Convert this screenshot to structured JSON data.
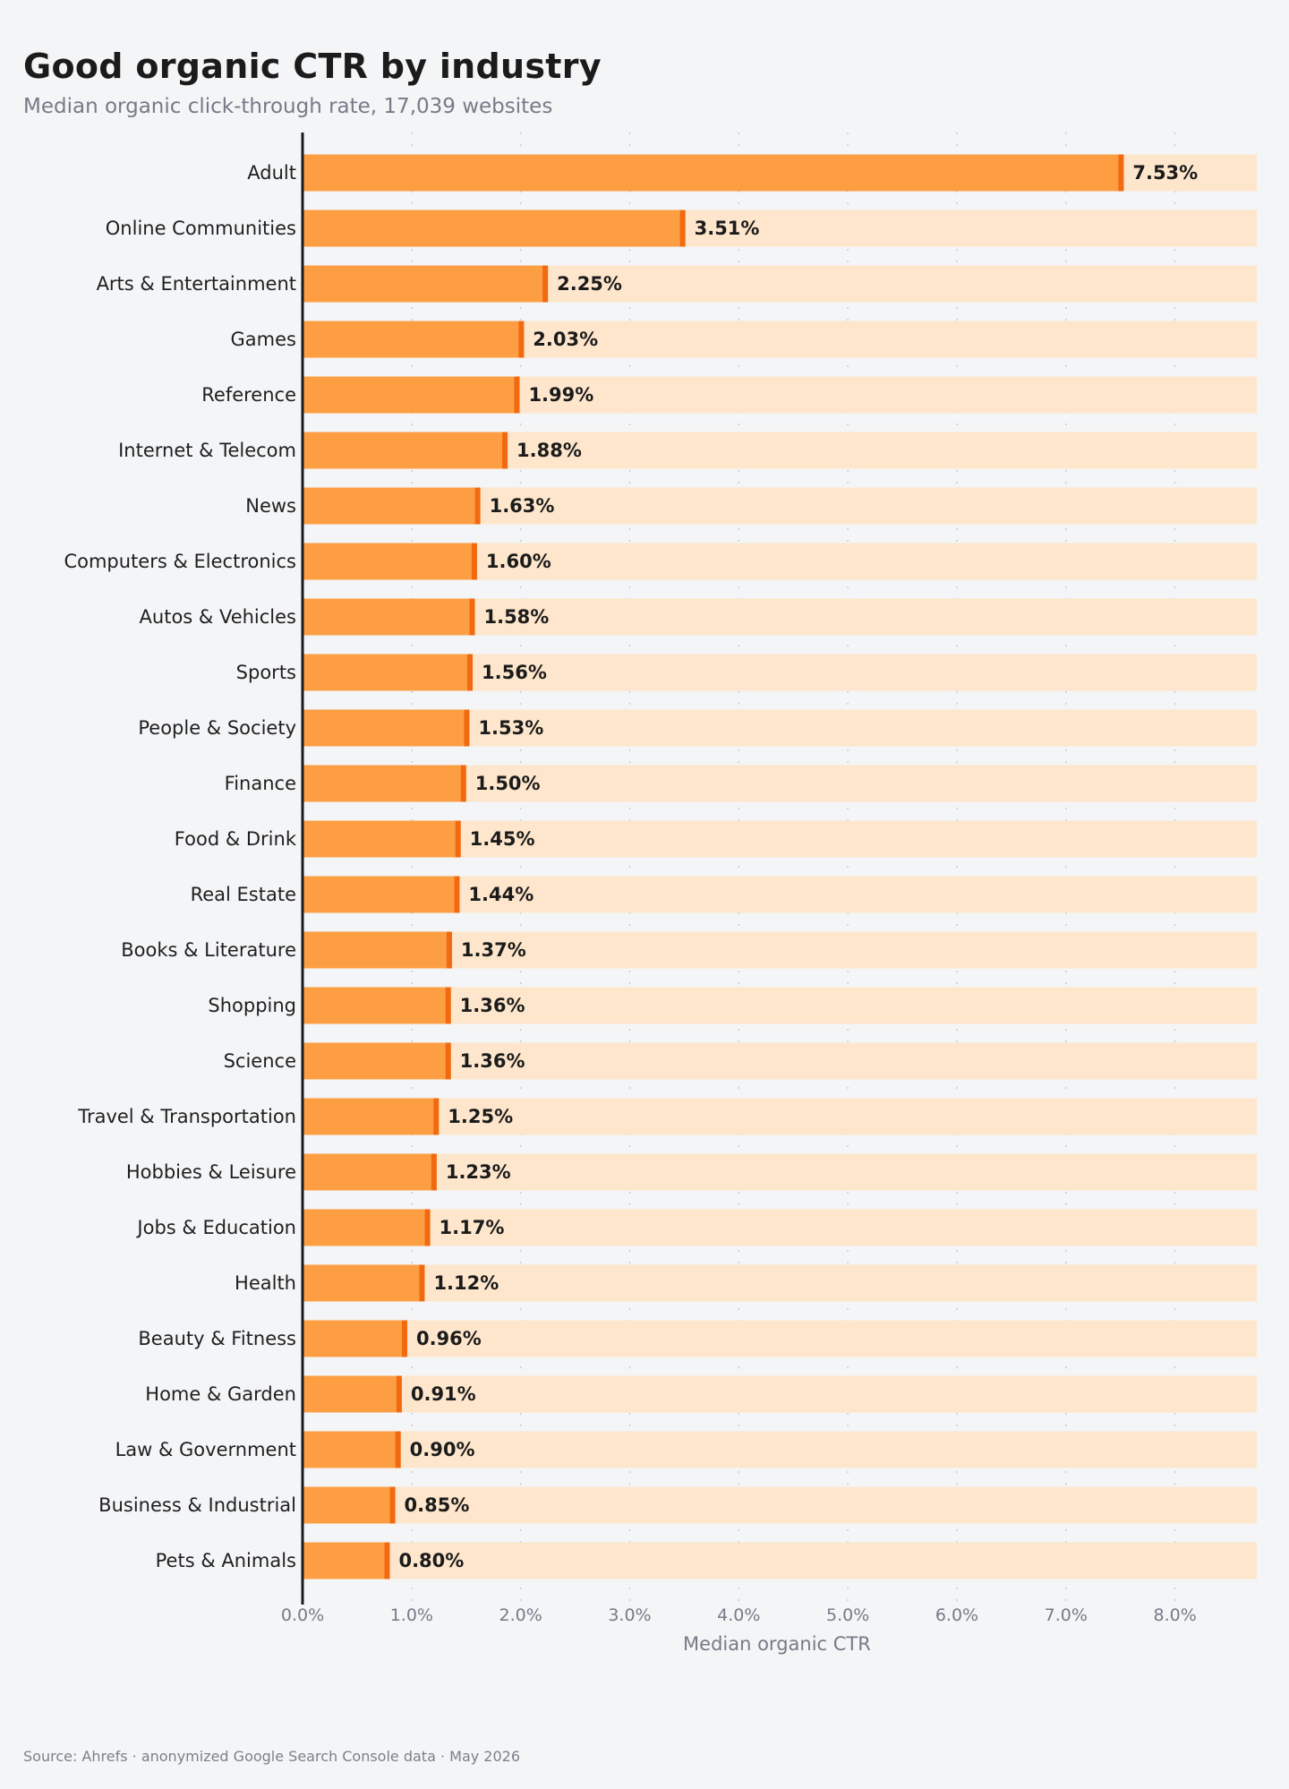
{
  "header": {
    "title": "Good organic CTR by industry",
    "subtitle": "Median organic click-through rate, 17,039 websites"
  },
  "footer": {
    "source": "Source: Ahrefs · anonymized Google Search Console data · May 2026"
  },
  "colors": {
    "bar": "#fd9e43",
    "bar_cap": "#f26a10",
    "track": "#fee6cc",
    "axis": "#1b1b1b",
    "grid": "#c9ccd2"
  },
  "chart_data": {
    "type": "bar",
    "orientation": "horizontal",
    "title": "Good organic CTR by industry",
    "subtitle": "Median organic click-through rate, 17,039 websites",
    "xlabel": "Median organic CTR",
    "ylabel": "",
    "xlim": [
      0,
      8.75
    ],
    "x_ticks": [
      0,
      1,
      2,
      3,
      4,
      5,
      6,
      7,
      8
    ],
    "x_tick_labels": [
      "0.0%",
      "1.0%",
      "2.0%",
      "3.0%",
      "4.0%",
      "5.0%",
      "6.0%",
      "7.0%",
      "8.0%"
    ],
    "grid": "vertical-dotted",
    "categories": [
      "Adult",
      "Online Communities",
      "Arts & Entertainment",
      "Games",
      "Reference",
      "Internet & Telecom",
      "News",
      "Computers & Electronics",
      "Autos & Vehicles",
      "Sports",
      "People & Society",
      "Finance",
      "Food & Drink",
      "Real Estate",
      "Books & Literature",
      "Shopping",
      "Science",
      "Travel & Transportation",
      "Hobbies & Leisure",
      "Jobs & Education",
      "Health",
      "Beauty & Fitness",
      "Home & Garden",
      "Law & Government",
      "Business & Industrial",
      "Pets & Animals"
    ],
    "values": [
      7.53,
      3.51,
      2.25,
      2.03,
      1.99,
      1.88,
      1.63,
      1.6,
      1.58,
      1.56,
      1.53,
      1.5,
      1.45,
      1.44,
      1.37,
      1.36,
      1.36,
      1.25,
      1.23,
      1.17,
      1.12,
      0.96,
      0.91,
      0.9,
      0.85,
      0.8
    ],
    "value_labels": [
      "7.53%",
      "3.51%",
      "2.25%",
      "2.03%",
      "1.99%",
      "1.88%",
      "1.63%",
      "1.60%",
      "1.58%",
      "1.56%",
      "1.53%",
      "1.50%",
      "1.45%",
      "1.44%",
      "1.37%",
      "1.36%",
      "1.36%",
      "1.25%",
      "1.23%",
      "1.17%",
      "1.12%",
      "0.96%",
      "0.91%",
      "0.90%",
      "0.85%",
      "0.80%"
    ]
  }
}
